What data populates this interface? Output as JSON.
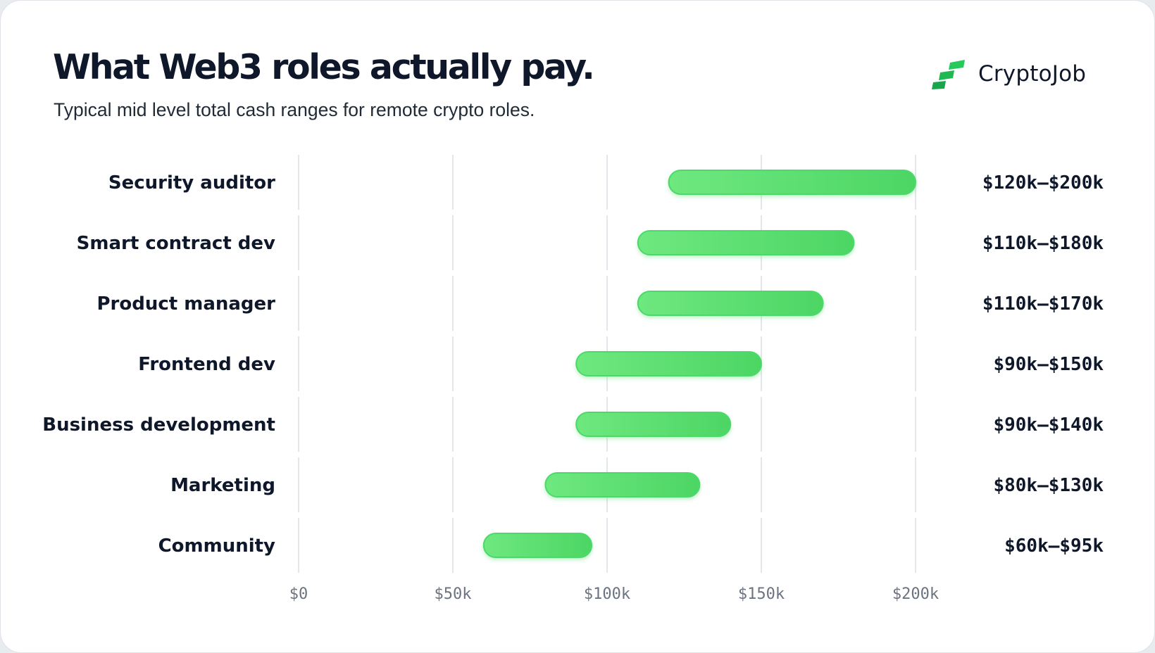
{
  "header": {
    "title": "What Web3 roles actually pay.",
    "subtitle": "Typical mid level total cash ranges for remote crypto roles."
  },
  "brand": {
    "name": "CryptoJob",
    "icon": "stairs-logo-icon",
    "colors": [
      "#18a54b",
      "#27c95b"
    ]
  },
  "colors": {
    "bar_start": "#6ee87f",
    "bar_end": "#4dd664",
    "text": "#0f172a",
    "tick": "#6b7280",
    "grid": "#e3e6ea"
  },
  "chart_data": {
    "type": "bar",
    "orientation": "horizontal",
    "title": "What Web3 roles actually pay.",
    "subtitle": "Typical mid level total cash ranges for remote crypto roles.",
    "xlabel": "",
    "ylabel": "",
    "xlim": [
      0,
      200000
    ],
    "ticks": [
      {
        "value": 0,
        "label": "$0"
      },
      {
        "value": 50000,
        "label": "$50k"
      },
      {
        "value": 100000,
        "label": "$100k"
      },
      {
        "value": 150000,
        "label": "$150k"
      },
      {
        "value": 200000,
        "label": "$200k"
      }
    ],
    "grid": true,
    "categories": [
      "Security auditor",
      "Smart contract dev",
      "Product manager",
      "Frontend dev",
      "Business development",
      "Marketing",
      "Community"
    ],
    "ranges": [
      {
        "role": "Security auditor",
        "min": 120000,
        "max": 200000,
        "label": "$120k–$200k"
      },
      {
        "role": "Smart contract dev",
        "min": 110000,
        "max": 180000,
        "label": "$110k–$180k"
      },
      {
        "role": "Product manager",
        "min": 110000,
        "max": 170000,
        "label": "$110k–$170k"
      },
      {
        "role": "Frontend dev",
        "min": 90000,
        "max": 150000,
        "label": "$90k–$150k"
      },
      {
        "role": "Business development",
        "min": 90000,
        "max": 140000,
        "label": "$90k–$140k"
      },
      {
        "role": "Marketing",
        "min": 80000,
        "max": 130000,
        "label": "$80k–$130k"
      },
      {
        "role": "Community",
        "min": 60000,
        "max": 95000,
        "label": "$60k–$95k"
      }
    ]
  }
}
